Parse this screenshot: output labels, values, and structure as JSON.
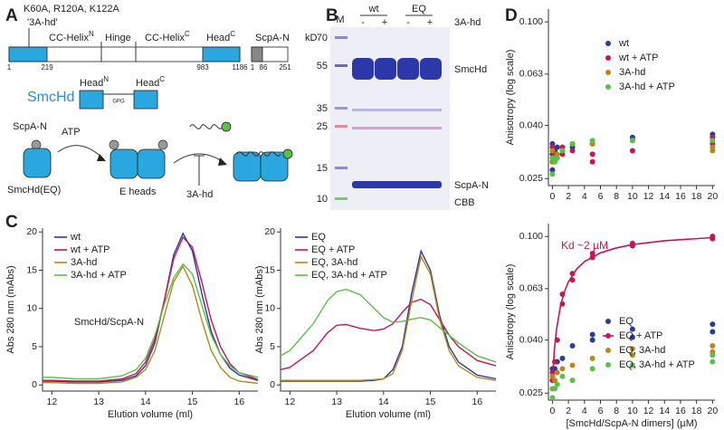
{
  "panel_labels": [
    "A",
    "B",
    "C",
    "D"
  ],
  "panel_a": {
    "mutations": "K60A, R120A, K122A",
    "alias": "'3A-hd'",
    "domains": [
      {
        "text": "CC-Helix",
        "sup": "N"
      },
      {
        "text": "Hinge"
      },
      {
        "text": "CC-Helix",
        "sup": "C"
      },
      {
        "text": "Head",
        "sup": "C"
      }
    ],
    "residues": [
      1,
      219,
      983,
      1186
    ],
    "scpa": {
      "label": "ScpA-N",
      "residues": [
        1,
        86,
        251
      ]
    },
    "smchd": {
      "label": "SmcHd",
      "head_n": {
        "text": "Head",
        "sup": "N"
      },
      "linker": "GPG",
      "head_c": {
        "text": "Head",
        "sup": "C"
      }
    },
    "scheme": {
      "scpa": "ScpA-N",
      "atp": "ATP",
      "smchd_eq": "SmcHd(EQ)",
      "e_heads": "E heads",
      "inhibitor": "3A-hd"
    }
  },
  "panel_b": {
    "marker": "M",
    "groups": [
      "wt",
      "EQ"
    ],
    "lanes": [
      "-",
      "+",
      "-",
      "+"
    ],
    "condition": "3A-hd",
    "unit": "kD",
    "markers": [
      70,
      55,
      35,
      25,
      15,
      10
    ],
    "bands": [
      "SmcHd",
      "ScpA-N"
    ],
    "stain": "CBB"
  },
  "chart_data": [
    {
      "type": "line",
      "xlabel": "Elution volume (ml)",
      "ylabel": "Abs 280 nm (mAbs)",
      "annotation": "SmcHd/ScpA-N",
      "x": [
        11.8,
        12,
        12.5,
        13,
        13.5,
        13.8,
        14,
        14.2,
        14.4,
        14.6,
        14.8,
        15,
        15.2,
        15.4,
        15.6,
        15.8,
        16,
        16.4
      ],
      "series": [
        {
          "name": "wt",
          "color": "#2b3a9c",
          "values": [
            0.5,
            0.5,
            0.4,
            0.4,
            0.6,
            1.2,
            2.5,
            5.5,
            11,
            17,
            19.8,
            17.5,
            12,
            7,
            4,
            2.2,
            1.3,
            0.6
          ]
        },
        {
          "name": "wt + ATP",
          "color": "#c4184e",
          "values": [
            0.6,
            0.6,
            0.5,
            0.5,
            0.8,
            1.5,
            3,
            6,
            11,
            16.5,
            19.3,
            18,
            13.5,
            8.5,
            5,
            2.8,
            1.6,
            0.7
          ]
        },
        {
          "name": "3A-hd",
          "color": "#b5891c",
          "values": [
            0.3,
            0.3,
            0.2,
            0.2,
            0.4,
            1,
            2,
            4.5,
            9,
            13.5,
            15.5,
            13,
            8.5,
            4.5,
            2.3,
            1,
            0.5,
            0.2
          ]
        },
        {
          "name": "3A-hd + ATP",
          "color": "#5bbf4a",
          "values": [
            1,
            1,
            0.8,
            0.8,
            1.2,
            2,
            3.5,
            6.5,
            10.5,
            14,
            15.8,
            14.5,
            10.5,
            6.5,
            4,
            2.5,
            1.6,
            1
          ]
        }
      ],
      "xlim": [
        11.8,
        16.4
      ],
      "xticks": [
        12,
        13,
        14,
        15,
        16
      ],
      "ylim": [
        -0.8,
        20.5
      ],
      "yticks": [
        0,
        5,
        10,
        15,
        20
      ],
      "legend": "upper left"
    },
    {
      "type": "line",
      "xlabel": "Elution volume (ml)",
      "ylabel": "Abs 280 nm (mAbs)",
      "x": [
        11.8,
        12,
        12.5,
        12.8,
        13,
        13.2,
        13.5,
        13.8,
        14,
        14.2,
        14.4,
        14.6,
        14.8,
        15,
        15.2,
        15.4,
        15.6,
        16,
        16.4
      ],
      "series": [
        {
          "name": "EQ",
          "color": "#2b3a9c",
          "values": [
            0.5,
            0.5,
            0.5,
            0.5,
            0.5,
            0.5,
            0.5,
            0.6,
            0.8,
            2,
            5,
            12,
            17.5,
            15,
            9,
            5,
            3,
            1.3,
            0.8
          ]
        },
        {
          "name": "EQ + ATP",
          "color": "#c4184e",
          "values": [
            2,
            2.3,
            4.5,
            6.8,
            7.8,
            7.9,
            7.4,
            7.1,
            7.3,
            8,
            9.5,
            10.8,
            11.2,
            10.5,
            8.5,
            6.5,
            5,
            3.2,
            2.5
          ]
        },
        {
          "name": "EQ, 3A-hd",
          "color": "#b5891c",
          "values": [
            0.6,
            0.6,
            0.6,
            0.6,
            0.6,
            0.6,
            0.6,
            0.7,
            0.8,
            1.5,
            4.5,
            11,
            16.8,
            14.5,
            8.5,
            4.5,
            2.5,
            1,
            0.6
          ]
        },
        {
          "name": "EQ, 3A-hd + ATP",
          "color": "#5bbf4a",
          "values": [
            3.8,
            4.5,
            8,
            11,
            12.2,
            12.5,
            11.8,
            10,
            8.8,
            8.2,
            8.3,
            8.6,
            8.8,
            8.5,
            7.5,
            6.5,
            5.5,
            3.8,
            3
          ]
        }
      ],
      "xlim": [
        11.8,
        16.4
      ],
      "xticks": [
        12,
        13,
        14,
        15,
        16
      ],
      "ylim": [
        -0.8,
        20.5
      ],
      "yticks": [
        0,
        5,
        10,
        15,
        20
      ],
      "legend": "upper left"
    },
    {
      "type": "scatter",
      "ylabel": "Anisotropy (log scale)",
      "log_y": true,
      "series": [
        {
          "name": "wt",
          "color": "#2b3a9c",
          "x": [
            0,
            0,
            0,
            0.3,
            0.6,
            1.25,
            2.5,
            5,
            10,
            10,
            20,
            20
          ],
          "values": [
            0.027,
            0.031,
            0.034,
            0.032,
            0.033,
            0.032,
            0.033,
            0.034,
            0.035,
            0.036,
            0.036,
            0.037
          ]
        },
        {
          "name": "wt + ATP",
          "color": "#c4184e",
          "x": [
            0,
            0,
            0.3,
            0.6,
            1.25,
            1.25,
            2.5,
            5,
            5,
            10,
            20,
            20
          ],
          "values": [
            0.029,
            0.033,
            0.031,
            0.03,
            0.031,
            0.033,
            0.032,
            0.029,
            0.031,
            0.032,
            0.034,
            0.036
          ]
        },
        {
          "name": "3A-hd",
          "color": "#b5891c",
          "x": [
            0,
            0,
            0.3,
            0.6,
            1.25,
            2.5,
            5,
            10,
            20,
            20
          ],
          "values": [
            0.029,
            0.032,
            0.03,
            0.031,
            0.032,
            0.034,
            0.034,
            0.035,
            0.032,
            0.033
          ]
        },
        {
          "name": "3A-hd + ATP",
          "color": "#5bbf4a",
          "x": [
            0,
            0,
            0.3,
            0.6,
            1.25,
            2.5,
            5,
            10,
            20
          ],
          "values": [
            0.026,
            0.03,
            0.029,
            0.03,
            0.032,
            0.034,
            0.035,
            0.035,
            0.035
          ]
        }
      ],
      "xlim": [
        -0.5,
        20.3
      ],
      "xticks": [
        0,
        2,
        4,
        6,
        8,
        10,
        12,
        14,
        16,
        18,
        20
      ],
      "ylim": [
        0.0235,
        0.112
      ],
      "yticks": [
        0.025,
        {
          "value": 0.04,
          "label": "0.040"
        },
        0.063,
        {
          "value": 0.1,
          "label": "0.100"
        }
      ],
      "legend": "upper right"
    },
    {
      "type": "scatter",
      "ylabel": "Anisotropy (log scale)",
      "xlabel": "[SmcHd/ScpA-N dimers] (µM)",
      "annotation": "Kd ~2 µM",
      "log_y": true,
      "series": [
        {
          "name": "EQ",
          "color": "#2b3a9c",
          "x": [
            0,
            0,
            0.3,
            0.6,
            1.25,
            2.5,
            5,
            5,
            10,
            10,
            20,
            20
          ],
          "values": [
            0.028,
            0.031,
            0.031,
            0.033,
            0.034,
            0.038,
            0.04,
            0.042,
            0.041,
            0.044,
            0.043,
            0.046
          ]
        },
        {
          "name": "EQ + ATP",
          "color": "#c4184e",
          "x": [
            0,
            0,
            0.3,
            0.6,
            1.25,
            1.25,
            2.5,
            2.5,
            5,
            5,
            10,
            10,
            20,
            20
          ],
          "values": [
            0.028,
            0.03,
            0.033,
            0.04,
            0.055,
            0.06,
            0.068,
            0.072,
            0.083,
            0.086,
            0.092,
            0.094,
            0.098,
            0.1
          ],
          "fit_x": [
            0,
            0.25,
            0.5,
            1,
            1.5,
            2,
            3,
            4,
            6,
            8,
            10,
            14,
            20
          ],
          "fit_values": [
            0.028,
            0.0367,
            0.0436,
            0.054,
            0.0614,
            0.067,
            0.0748,
            0.08,
            0.0865,
            0.0904,
            0.093,
            0.0963,
            0.0989
          ]
        },
        {
          "name": "EQ, 3A-hd",
          "color": "#b5891c",
          "x": [
            0,
            0,
            0.3,
            0.6,
            1.25,
            2.5,
            5,
            10,
            10,
            20,
            20
          ],
          "values": [
            0.026,
            0.029,
            0.028,
            0.03,
            0.031,
            0.032,
            0.034,
            0.035,
            0.037,
            0.036,
            0.038
          ]
        },
        {
          "name": "EQ, 3A-hd + ATP",
          "color": "#5bbf4a",
          "x": [
            0,
            0,
            0.3,
            0.6,
            1.25,
            2.5,
            5,
            10,
            20,
            20
          ],
          "values": [
            0.024,
            0.026,
            0.026,
            0.027,
            0.029,
            0.028,
            0.031,
            0.032,
            0.033,
            0.035
          ]
        }
      ],
      "xlim": [
        -0.5,
        20.3
      ],
      "xticks": [
        0,
        2,
        4,
        6,
        8,
        10,
        12,
        14,
        16,
        18,
        20
      ],
      "ylim": [
        0.0235,
        0.112
      ],
      "yticks": [
        0.025,
        {
          "value": 0.04,
          "label": "0.040"
        },
        0.063,
        {
          "value": 0.1,
          "label": "0.100"
        }
      ],
      "legend": "upper right"
    }
  ]
}
